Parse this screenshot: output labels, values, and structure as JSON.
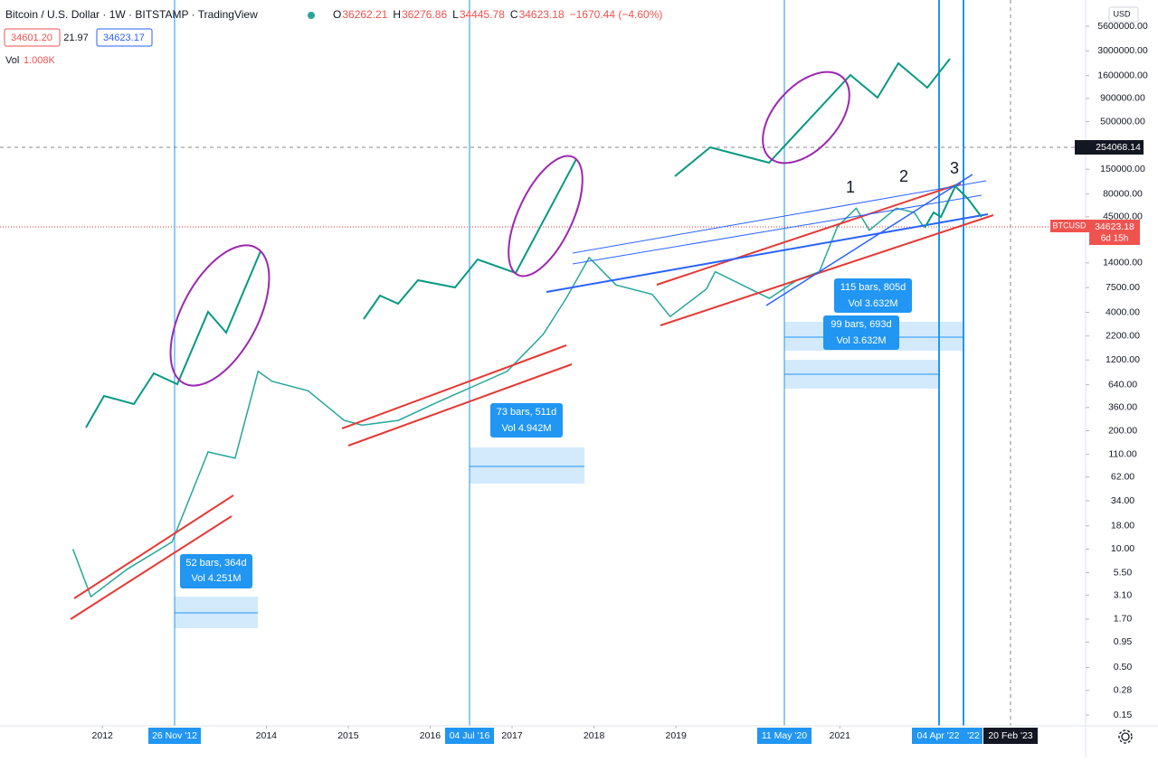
{
  "header": {
    "title": "Bitcoin / U.S. Dollar · 1W · BITSTAMP · TradingView",
    "ohlc": [
      {
        "key": "O",
        "value": "36262.21"
      },
      {
        "key": "H",
        "value": "36276.86"
      },
      {
        "key": "L",
        "value": "34445.78"
      },
      {
        "key": "C",
        "value": "34623.18"
      }
    ],
    "change": "−1670.44 (−4.60%)",
    "bid": "34601.20",
    "spread": "21.97",
    "ask": "34623.17",
    "vol_label": "Vol",
    "vol_value": "1.008K",
    "currency": "USD"
  },
  "price_label": {
    "symbol": "BTCUSD",
    "price": "34623.18",
    "countdown": "6d 15h"
  },
  "crosshair_label": "254068.14",
  "date_labels": [
    "26 Nov '12",
    "04 Jul '16",
    "11 May '20",
    "04 Apr '22",
    "'22",
    "20 Feb '23"
  ],
  "measurements": [
    {
      "bars": "52 bars, 364d",
      "vol": "Vol 4.251M"
    },
    {
      "bars": "73 bars, 511d",
      "vol": "Vol 4.942M"
    },
    {
      "bars": "115 bars, 805d",
      "vol": "Vol 3.632M"
    },
    {
      "bars": "99 bars, 693d",
      "vol": "Vol 3.632M"
    }
  ],
  "wave_labels": [
    "1",
    "2",
    "3"
  ],
  "chart_data": {
    "type": "line",
    "log_scale": true,
    "xlim": [
      2010.75,
      2024.0
    ],
    "ylim": [
      0.114,
      10870000
    ],
    "xticks": [
      2012,
      2014,
      2015,
      2016,
      2017,
      2018,
      2019,
      2021
    ],
    "yticks": [
      {
        "value": 5600000,
        "label": "5600000.00"
      },
      {
        "value": 3000000,
        "label": "3000000.00"
      },
      {
        "value": 1600000,
        "label": "1600000.00"
      },
      {
        "value": 900000,
        "label": "900000.00"
      },
      {
        "value": 500000,
        "label": "500000.00"
      },
      {
        "value": 150000,
        "label": "150000.00"
      },
      {
        "value": 80000,
        "label": "80000.00"
      },
      {
        "value": 45000,
        "label": "45000.00"
      },
      {
        "value": 14000,
        "label": "14000.00"
      },
      {
        "value": 7500,
        "label": "7500.00"
      },
      {
        "value": 4000,
        "label": "4000.00"
      },
      {
        "value": 2200,
        "label": "2200.00"
      },
      {
        "value": 1200,
        "label": "1200.00"
      },
      {
        "value": 640,
        "label": "640.00"
      },
      {
        "value": 360,
        "label": "360.00"
      },
      {
        "value": 200,
        "label": "200.00"
      },
      {
        "value": 110,
        "label": "110.00"
      },
      {
        "value": 62,
        "label": "62.00"
      },
      {
        "value": 34,
        "label": "34.00"
      },
      {
        "value": 18,
        "label": "18.00"
      },
      {
        "value": 10,
        "label": "10.00"
      },
      {
        "value": 5.5,
        "label": "5.50"
      },
      {
        "value": 3.1,
        "label": "3.10"
      },
      {
        "value": 1.7,
        "label": "1.70"
      },
      {
        "value": 0.95,
        "label": "0.95"
      },
      {
        "value": 0.5,
        "label": "0.50"
      },
      {
        "value": 0.28,
        "label": "0.28"
      },
      {
        "value": 0.15,
        "label": "0.15"
      }
    ],
    "x": [
      2011.64,
      2011.86,
      2012.3,
      2012.85,
      2013.29,
      2013.62,
      2013.9,
      2014.07,
      2014.51,
      2014.95,
      2015.17,
      2015.61,
      2016.06,
      2016.5,
      2016.94,
      2017.38,
      2017.66,
      2017.94,
      2018.27,
      2018.71,
      2018.93,
      2019.37,
      2019.48,
      2019.81,
      2020.14,
      2020.48,
      2020.75,
      2020.97,
      2021.2,
      2021.36,
      2021.69,
      2021.91,
      2022.02
    ],
    "series": [
      {
        "name": "BTCUSD",
        "color": "#26a69a",
        "values": [
          10,
          3,
          6,
          12,
          117,
          100,
          900,
          700,
          550,
          260,
          230,
          260,
          400,
          600,
          900,
          2300,
          5700,
          16000,
          8000,
          6300,
          3600,
          7200,
          11200,
          8000,
          5700,
          9100,
          11200,
          35000,
          56000,
          32000,
          56000,
          50000,
          35000
        ]
      }
    ]
  }
}
